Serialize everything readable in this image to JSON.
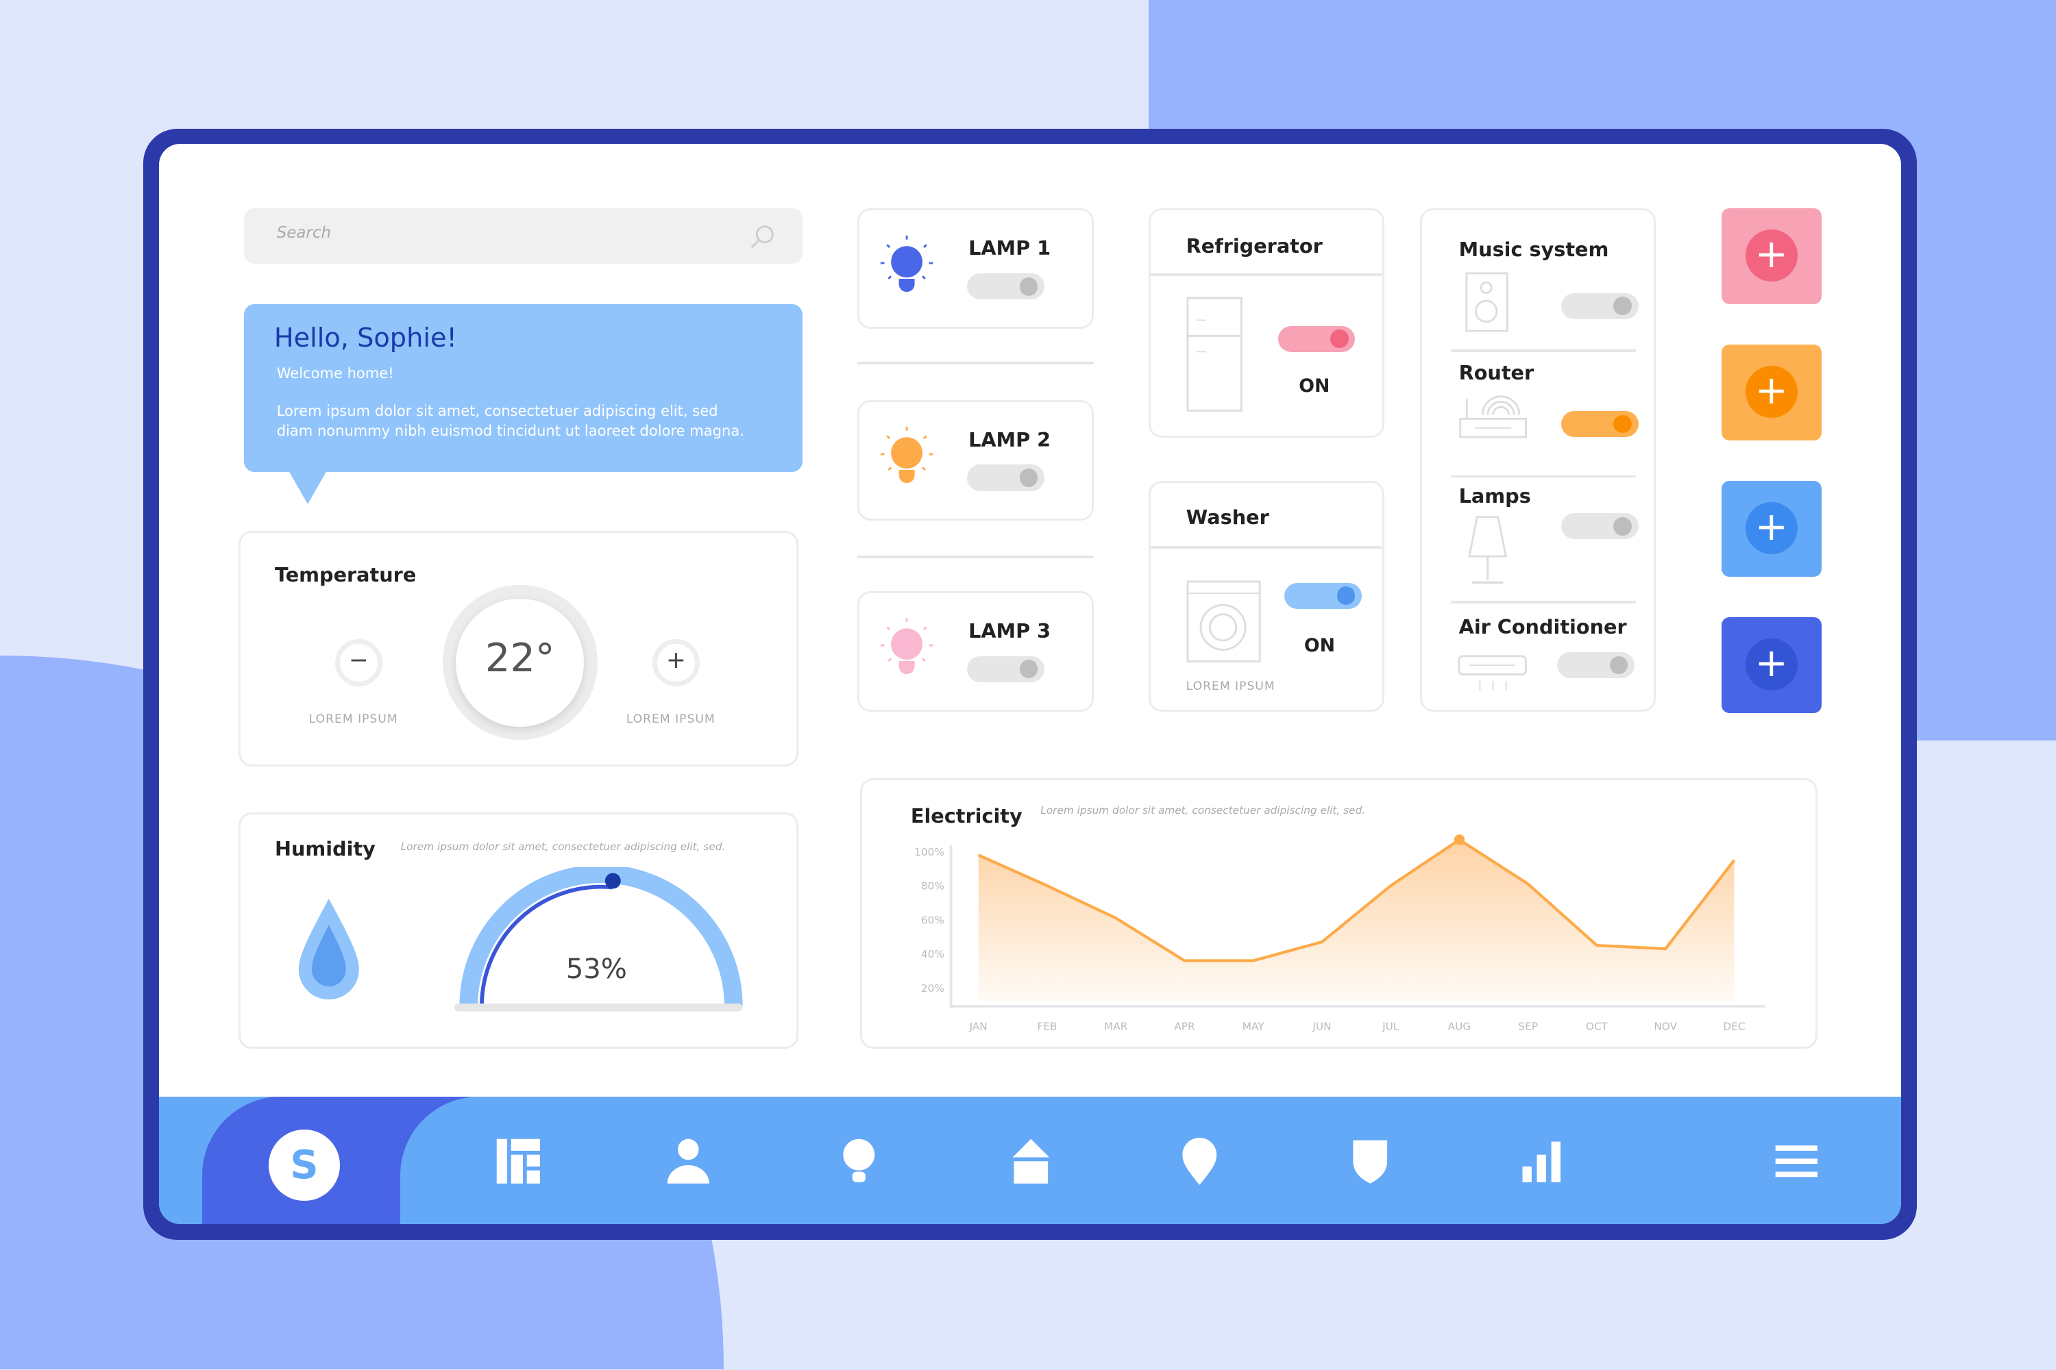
{
  "search": {
    "placeholder": "Search"
  },
  "greeting": {
    "title": "Hello, Sophie!",
    "subtitle": "Welcome home!",
    "body_line1": "Lorem ipsum dolor sit amet, consectetuer adipiscing elit, sed",
    "body_line2": "diam nonummy nibh euismod tincidunt ut laoreet dolore magna."
  },
  "temperature": {
    "title": "Temperature",
    "value": "22°",
    "minus_label": "LOREM IPSUM",
    "plus_label": "LOREM IPSUM"
  },
  "humidity": {
    "title": "Humidity",
    "subtitle": "Lorem ipsum dolor sit amet, consectetuer adipiscing elit, sed.",
    "value": "53%",
    "level_percent": 53
  },
  "lamps": [
    {
      "label": "LAMP 1",
      "color": "#4a67e8",
      "on": false
    },
    {
      "label": "LAMP 2",
      "color": "#fdaa48",
      "on": false
    },
    {
      "label": "LAMP 3",
      "color": "#f9b8d0",
      "on": false
    }
  ],
  "refrigerator": {
    "title": "Refrigerator",
    "state": "ON",
    "toggle_color": "#f7a3b5"
  },
  "washer": {
    "title": "Washer",
    "state": "ON",
    "caption": "LOREM IPSUM",
    "toggle_color": "#91c4fb"
  },
  "devices": [
    {
      "label": "Music system",
      "on": false
    },
    {
      "label": "Router",
      "on": true,
      "color": "#fdb04f"
    },
    {
      "label": "Lamps",
      "on": false
    },
    {
      "label": "Air Conditioner",
      "on": false
    }
  ],
  "add_buttons": [
    {
      "color": "#f7a3b5",
      "inner": "#f2647f",
      "icon": "plus-icon"
    },
    {
      "color": "#fdb04f",
      "inner": "#fb8c00",
      "icon": "plus-icon"
    },
    {
      "color": "#64a8f8",
      "inner": "#3b8af0",
      "icon": "plus-icon"
    },
    {
      "color": "#4865e6",
      "inner": "#3454d6",
      "icon": "plus-icon"
    }
  ],
  "nav": {
    "avatar_letter": "S",
    "icons": [
      "dashboard-icon",
      "user-icon",
      "bulb-icon",
      "home-icon",
      "location-pin-icon",
      "shield-icon",
      "bar-chart-icon",
      "menu-icon"
    ]
  },
  "chart_data": {
    "type": "area",
    "title": "Electricity",
    "subtitle": "Lorem ipsum dolor sit amet, consectetuer adipiscing elit, sed.",
    "categories": [
      "JAN",
      "FEB",
      "MAR",
      "APR",
      "MAY",
      "JUN",
      "JUL",
      "AUG",
      "SEP",
      "OCT",
      "NOV",
      "DEC"
    ],
    "values": [
      98,
      80,
      61,
      36,
      36,
      47,
      80,
      107,
      81,
      45,
      43,
      95
    ],
    "yticks": [
      "100%",
      "80%",
      "60%",
      "40%",
      "20%"
    ],
    "ytick_values": [
      100,
      80,
      60,
      40,
      20
    ],
    "highlight": "AUG",
    "color": "#fdaa48",
    "grid": false
  }
}
